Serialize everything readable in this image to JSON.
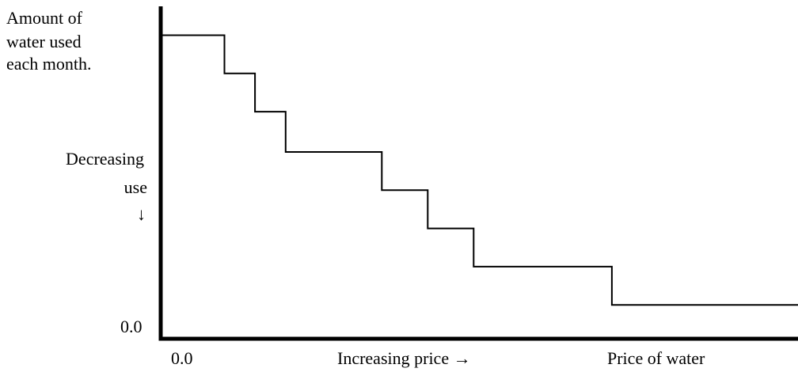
{
  "chart_data": {
    "type": "line",
    "step": true,
    "ylabel": [
      "Amount of",
      "water used",
      "each month."
    ],
    "y_annotation": [
      "Decreasing",
      "use",
      "↓"
    ],
    "y_tick_label": "0.0",
    "x_tick_label": "0.0",
    "x_annotation": "Increasing price →",
    "xlabel": "Price of water",
    "xlim": [
      0,
      100
    ],
    "ylim": [
      0,
      100
    ],
    "grid": false,
    "series": [
      {
        "x": [
          0,
          10,
          10,
          14.8,
          14.8,
          19.6,
          19.6,
          34.7,
          34.7,
          41.9,
          41.9,
          49.1,
          49.1,
          70.8,
          70.8,
          100
        ],
        "y": [
          91.3,
          91.3,
          79.8,
          79.8,
          68.3,
          68.3,
          56.2,
          56.2,
          44.7,
          44.7,
          33.2,
          33.2,
          21.7,
          21.7,
          10.2,
          10.2
        ]
      }
    ],
    "line_color": "#000000",
    "axis_color": "#000000"
  }
}
